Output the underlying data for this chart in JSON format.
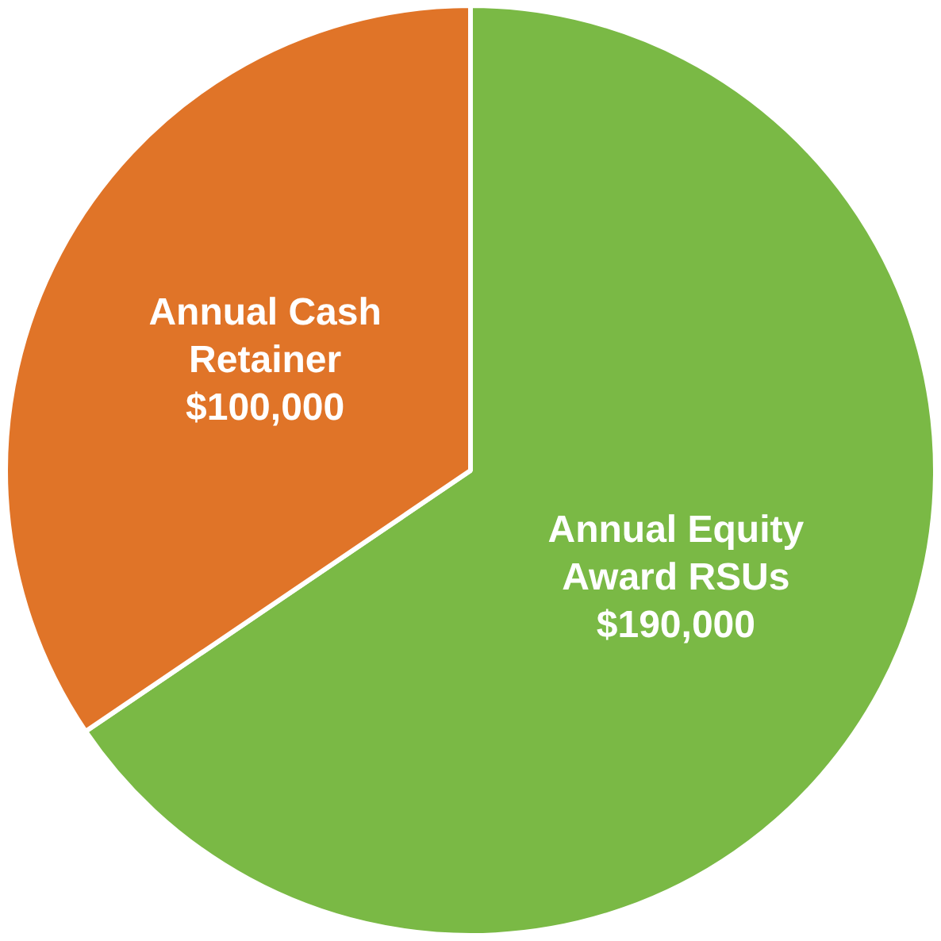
{
  "chart_data": {
    "type": "pie",
    "categories": [
      "Annual Equity Award RSUs",
      "Annual Cash Retainer"
    ],
    "values": [
      190000,
      100000
    ],
    "colors": [
      "#7ab945",
      "#e07428"
    ],
    "value_labels": [
      "$190,000",
      "$100,000"
    ],
    "legend": false
  }
}
